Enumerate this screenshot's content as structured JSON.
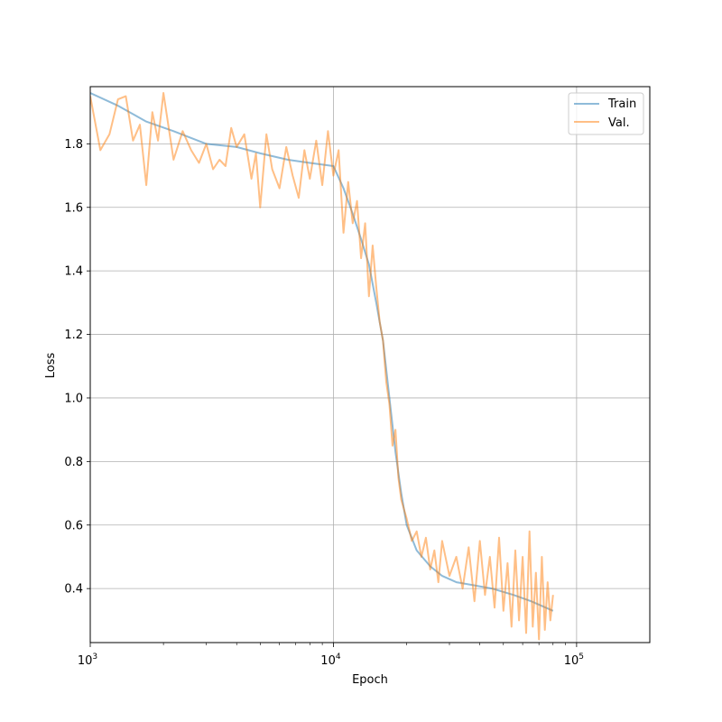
{
  "chart_data": {
    "type": "line",
    "title": "",
    "xlabel": "Epoch",
    "ylabel": "Loss",
    "xscale": "log",
    "xlim": [
      1000,
      200000
    ],
    "ylim": [
      0.23,
      1.98
    ],
    "grid": true,
    "legend_position": "top-right",
    "x_ticks": [
      {
        "value": 1000,
        "base": "10",
        "exp": "3"
      },
      {
        "value": 10000,
        "base": "10",
        "exp": "4"
      },
      {
        "value": 100000,
        "base": "10",
        "exp": "5"
      }
    ],
    "y_ticks": [
      {
        "value": 0.4,
        "label": "0.4"
      },
      {
        "value": 0.6,
        "label": "0.6"
      },
      {
        "value": 0.8,
        "label": "0.8"
      },
      {
        "value": 1.0,
        "label": "1.0"
      },
      {
        "value": 1.2,
        "label": "1.2"
      },
      {
        "value": 1.4,
        "label": "1.4"
      },
      {
        "value": 1.6,
        "label": "1.6"
      },
      {
        "value": 1.8,
        "label": "1.8"
      }
    ],
    "series": [
      {
        "name": "Train",
        "color": "#1f77b4",
        "x": [
          1000,
          1300,
          1700,
          2200,
          3000,
          4000,
          5000,
          6500,
          8000,
          10000,
          11000,
          12000,
          13000,
          14000,
          15000,
          16000,
          17000,
          18000,
          19000,
          20000,
          22000,
          25000,
          28000,
          32000,
          38000,
          45000,
          55000,
          65000,
          80000
        ],
        "y": [
          1.96,
          1.92,
          1.87,
          1.84,
          1.8,
          1.79,
          1.77,
          1.75,
          1.74,
          1.73,
          1.66,
          1.58,
          1.5,
          1.42,
          1.3,
          1.18,
          1.0,
          0.83,
          0.7,
          0.6,
          0.52,
          0.47,
          0.44,
          0.42,
          0.41,
          0.4,
          0.38,
          0.36,
          0.33
        ]
      },
      {
        "name": "Val.",
        "color": "#ff7f0e",
        "x": [
          1000,
          1100,
          1200,
          1300,
          1400,
          1500,
          1600,
          1700,
          1800,
          1900,
          2000,
          2200,
          2400,
          2600,
          2800,
          3000,
          3200,
          3400,
          3600,
          3800,
          4000,
          4300,
          4600,
          4800,
          5000,
          5300,
          5600,
          6000,
          6400,
          6800,
          7200,
          7600,
          8000,
          8500,
          9000,
          9500,
          10000,
          10500,
          11000,
          11500,
          12000,
          12500,
          13000,
          13500,
          14000,
          14500,
          15000,
          15500,
          16000,
          16500,
          17000,
          17500,
          18000,
          18500,
          19000,
          20000,
          21000,
          22000,
          23000,
          24000,
          25000,
          26000,
          27000,
          28000,
          30000,
          32000,
          34000,
          36000,
          38000,
          40000,
          42000,
          44000,
          46000,
          48000,
          50000,
          52000,
          54000,
          56000,
          58000,
          60000,
          62000,
          64000,
          66000,
          68000,
          70000,
          72000,
          74000,
          76000,
          78000,
          80000
        ],
        "y": [
          1.95,
          1.78,
          1.83,
          1.94,
          1.95,
          1.81,
          1.86,
          1.67,
          1.9,
          1.81,
          1.96,
          1.75,
          1.84,
          1.78,
          1.74,
          1.8,
          1.72,
          1.75,
          1.73,
          1.85,
          1.79,
          1.83,
          1.69,
          1.77,
          1.6,
          1.83,
          1.72,
          1.66,
          1.79,
          1.7,
          1.63,
          1.78,
          1.69,
          1.81,
          1.67,
          1.84,
          1.7,
          1.78,
          1.52,
          1.68,
          1.55,
          1.62,
          1.44,
          1.55,
          1.32,
          1.48,
          1.35,
          1.24,
          1.18,
          1.05,
          0.98,
          0.85,
          0.9,
          0.75,
          0.68,
          0.62,
          0.55,
          0.58,
          0.5,
          0.56,
          0.46,
          0.52,
          0.42,
          0.55,
          0.44,
          0.5,
          0.4,
          0.53,
          0.36,
          0.55,
          0.38,
          0.5,
          0.34,
          0.56,
          0.33,
          0.48,
          0.28,
          0.52,
          0.3,
          0.5,
          0.26,
          0.58,
          0.28,
          0.45,
          0.24,
          0.5,
          0.27,
          0.42,
          0.3,
          0.38
        ]
      }
    ]
  }
}
